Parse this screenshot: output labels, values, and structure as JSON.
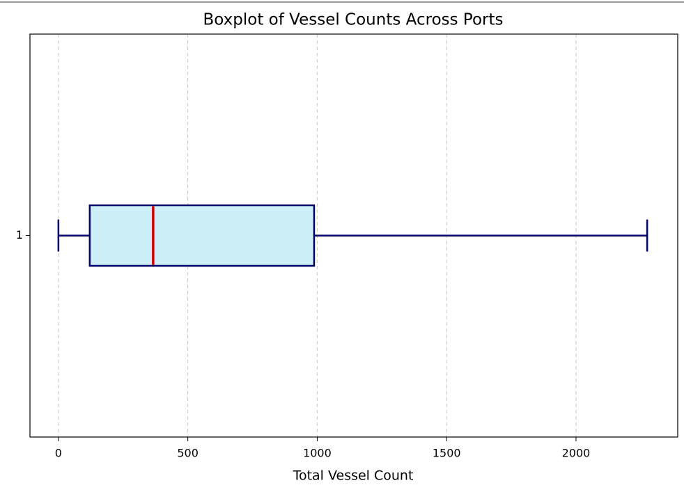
{
  "chart_data": {
    "type": "box",
    "title": "Boxplot of Vessel Counts Across Ports",
    "xlabel": "Total Vessel Count",
    "categories": [
      "1"
    ],
    "boxes": [
      {
        "low": 0,
        "q1": 121,
        "median": 366,
        "q3": 988,
        "high": 2275
      }
    ],
    "box_fill": "#cdeff7",
    "edge_color": "#000066",
    "median_color": "#d40000",
    "xlim": [
      -110,
      2393
    ],
    "xticks": [
      0,
      500,
      1000,
      1500,
      2000
    ],
    "grid": true
  }
}
